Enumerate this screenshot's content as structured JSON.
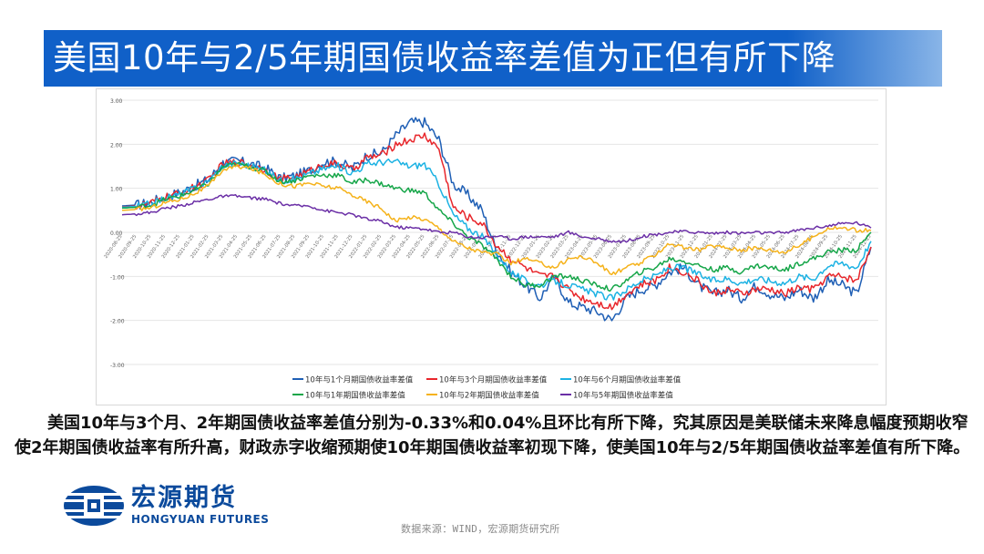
{
  "title": "美国10年与2/5年期国债收益率差值为正但有所下降",
  "body_text": "　　美国10年与3个月、2年期国债收益率差值分别为-0.33%和0.04%且环比有所下降，究其原因是美联储未来降息幅度预期收窄使2年期国债收益率有所升高，财政赤字收缩预期使10年期国债收益率初现下降，使美国10年与2/5年期国债收益率差值有所下降。",
  "logo": {
    "cn": "宏源期货",
    "en": "HONGYUAN FUTURES"
  },
  "source": "数据来源：WIND，宏源期货研究所",
  "chart_data": {
    "type": "line",
    "title": "",
    "xlabel": "",
    "ylabel": "",
    "ylim": [
      -3.0,
      3.0
    ],
    "yticks": [
      "3.00",
      "2.00",
      "1.00",
      "0.00",
      "-1.00",
      "-2.00",
      "-3.00"
    ],
    "grid": true,
    "legend_position": "bottom",
    "categories": [
      "2020-08-25",
      "2020-09-25",
      "2020-10-25",
      "2020-11-25",
      "2020-12-25",
      "2021-01-25",
      "2021-02-25",
      "2021-03-25",
      "2021-04-25",
      "2021-05-25",
      "2021-06-25",
      "2021-07-25",
      "2021-08-25",
      "2021-09-25",
      "2021-10-25",
      "2021-11-25",
      "2021-12-25",
      "2022-01-25",
      "2022-02-25",
      "2022-03-25",
      "2022-04-25",
      "2022-05-25",
      "2022-06-25",
      "2022-07-25",
      "2022-08-25",
      "2022-09-25",
      "2022-10-25",
      "2022-11-25",
      "2022-12-25",
      "2023-01-25",
      "2023-02-25",
      "2023-03-25",
      "2023-04-25",
      "2023-05-25",
      "2023-06-25",
      "2023-07-25",
      "2023-08-25",
      "2023-09-25",
      "2023-10-25",
      "2023-11-25",
      "2023-12-25",
      "2024-01-25",
      "2024-02-25",
      "2024-03-25",
      "2024-04-25",
      "2024-05-25",
      "2024-06-25",
      "2024-07-25",
      "2024-08-25",
      "2024-09-25",
      "2024-10-25",
      "2024-11-25",
      "2024-12-25"
    ],
    "series": [
      {
        "name": "10年与1个月期国债收益率差值",
        "color": "#1f5fb5",
        "values": [
          0.6,
          0.62,
          0.68,
          0.82,
          0.9,
          1.05,
          1.2,
          1.58,
          1.62,
          1.55,
          1.45,
          1.22,
          1.28,
          1.4,
          1.6,
          1.6,
          1.45,
          1.75,
          1.8,
          2.2,
          2.5,
          2.5,
          2.1,
          1.1,
          0.85,
          0.5,
          -0.4,
          -0.9,
          -1.2,
          -1.5,
          -1.0,
          -1.6,
          -1.7,
          -1.8,
          -2.0,
          -1.5,
          -1.3,
          -1.2,
          -0.9,
          -0.8,
          -1.2,
          -1.4,
          -1.3,
          -1.5,
          -1.2,
          -1.4,
          -1.5,
          -1.3,
          -1.5,
          -1.1,
          -1.2,
          -1.4,
          -0.33
        ]
      },
      {
        "name": "10年与3个月期国债收益率差值",
        "color": "#e8262b",
        "values": [
          0.58,
          0.6,
          0.66,
          0.8,
          0.88,
          1.02,
          1.18,
          1.55,
          1.6,
          1.52,
          1.42,
          1.2,
          1.26,
          1.38,
          1.55,
          1.55,
          1.42,
          1.7,
          1.75,
          2.0,
          2.1,
          2.2,
          1.9,
          0.55,
          0.35,
          0.2,
          -0.3,
          -0.6,
          -0.8,
          -1.0,
          -1.0,
          -1.3,
          -1.5,
          -1.6,
          -1.7,
          -1.4,
          -1.2,
          -1.1,
          -0.8,
          -0.9,
          -1.1,
          -1.4,
          -1.3,
          -1.4,
          -1.3,
          -1.3,
          -1.4,
          -1.25,
          -1.3,
          -1.0,
          -1.0,
          -1.1,
          -0.33
        ]
      },
      {
        "name": "10年与6个月期国债收益率差值",
        "color": "#1cb2e3",
        "values": [
          0.57,
          0.59,
          0.65,
          0.78,
          0.86,
          1.0,
          1.16,
          1.52,
          1.58,
          1.5,
          1.4,
          1.18,
          1.22,
          1.33,
          1.45,
          1.5,
          1.35,
          1.55,
          1.6,
          1.6,
          1.5,
          1.55,
          1.1,
          0.4,
          0.1,
          -0.1,
          -0.5,
          -0.9,
          -1.1,
          -1.2,
          -1.1,
          -1.2,
          -1.3,
          -1.4,
          -1.5,
          -1.3,
          -1.1,
          -1.0,
          -0.8,
          -0.8,
          -0.95,
          -1.1,
          -1.05,
          -1.15,
          -1.05,
          -1.1,
          -1.15,
          -1.0,
          -1.05,
          -0.75,
          -0.7,
          -0.8,
          -0.2
        ]
      },
      {
        "name": "10年与1年期国债收益率差值",
        "color": "#16a649",
        "values": [
          0.55,
          0.57,
          0.62,
          0.75,
          0.82,
          0.95,
          1.1,
          1.48,
          1.55,
          1.48,
          1.38,
          1.15,
          1.18,
          1.28,
          1.3,
          1.3,
          1.12,
          1.2,
          1.1,
          1.0,
          0.95,
          0.9,
          0.5,
          0.2,
          -0.1,
          -0.3,
          -0.6,
          -1.0,
          -1.2,
          -1.2,
          -1.0,
          -1.0,
          -1.1,
          -1.2,
          -1.3,
          -1.1,
          -0.9,
          -0.8,
          -0.6,
          -0.65,
          -0.75,
          -0.85,
          -0.8,
          -0.9,
          -0.75,
          -0.8,
          -0.85,
          -0.7,
          -0.6,
          -0.45,
          -0.4,
          -0.4,
          0.0
        ]
      },
      {
        "name": "10年与2年期国债收益率差值",
        "color": "#f5b21a",
        "values": [
          0.5,
          0.52,
          0.56,
          0.68,
          0.75,
          0.88,
          1.05,
          1.42,
          1.5,
          1.45,
          1.3,
          1.1,
          1.05,
          1.12,
          1.05,
          1.0,
          0.85,
          0.7,
          0.55,
          0.25,
          0.35,
          0.3,
          0.1,
          -0.2,
          -0.35,
          -0.45,
          -0.5,
          -0.7,
          -0.6,
          -0.7,
          -0.8,
          -0.6,
          -0.55,
          -0.7,
          -0.95,
          -0.8,
          -0.7,
          -0.5,
          -0.25,
          -0.35,
          -0.4,
          -0.3,
          -0.35,
          -0.4,
          -0.35,
          -0.4,
          -0.45,
          -0.3,
          -0.1,
          0.1,
          0.1,
          0.05,
          0.04
        ]
      },
      {
        "name": "10年与5年期国债收益率差值",
        "color": "#6b2fa6",
        "values": [
          0.4,
          0.42,
          0.45,
          0.55,
          0.6,
          0.68,
          0.75,
          0.82,
          0.82,
          0.78,
          0.75,
          0.65,
          0.6,
          0.6,
          0.5,
          0.45,
          0.4,
          0.3,
          0.25,
          0.12,
          0.1,
          0.08,
          0.0,
          0.0,
          -0.1,
          -0.12,
          -0.08,
          -0.15,
          -0.1,
          -0.1,
          -0.1,
          0.0,
          -0.1,
          -0.15,
          -0.2,
          -0.2,
          -0.1,
          -0.05,
          0.0,
          0.02,
          0.0,
          -0.02,
          0.0,
          -0.02,
          0.0,
          -0.02,
          0.0,
          0.05,
          0.1,
          0.15,
          0.2,
          0.22,
          0.1
        ]
      }
    ]
  }
}
